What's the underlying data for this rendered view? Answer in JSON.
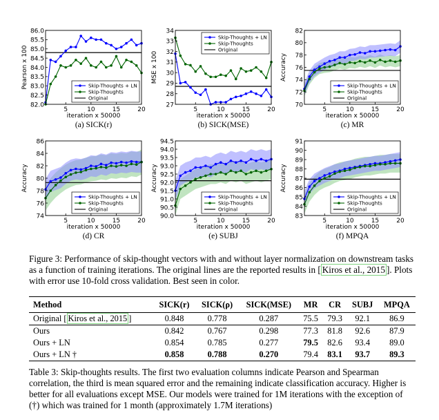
{
  "figure": {
    "series_names": [
      "Skip-Thoughts + LN",
      "Skip-Thoughts",
      "Original"
    ],
    "colors": {
      "ln": "#0000ff",
      "st": "#006400",
      "orig": "#000000",
      "ln_band": "#8c8cff",
      "st_band": "#8ccd8c"
    },
    "xlabel": "iteration x 50000",
    "caption_label": "Figure 3:",
    "caption_text": "Performance of skip-thought vectors with and without layer normalization on downstream tasks as a function of training iterations. The original lines are the reported results in",
    "caption_cite": "Kiros et al., 2015",
    "caption_end": ". Plots with error use 10-fold cross validation. Best seen in color."
  },
  "chart_data": [
    {
      "type": "line",
      "subcaption": "(a) SICK(r)",
      "ylabel": "Pearson x 100",
      "ylim": [
        82.0,
        86.0
      ],
      "yticks": [
        "82.0",
        "82.5",
        "83.0",
        "83.5",
        "84.0",
        "84.5",
        "85.0",
        "85.5",
        "86.0"
      ],
      "xlim": [
        1,
        20
      ],
      "xticks": [
        "5",
        "10",
        "15",
        "20"
      ],
      "legend_pos": "lower-right",
      "error_band": false,
      "original": 84.8,
      "x": [
        1,
        2,
        3,
        4,
        5,
        6,
        7,
        8,
        9,
        10,
        11,
        12,
        13,
        14,
        15,
        16,
        17,
        18,
        19,
        20
      ],
      "series": [
        {
          "name": "Skip-Thoughts + LN",
          "values": [
            82.1,
            84.4,
            84.3,
            84.6,
            84.9,
            85.1,
            85.1,
            85.7,
            85.4,
            85.6,
            85.5,
            85.5,
            85.3,
            85.2,
            85.0,
            85.1,
            85.3,
            85.5,
            85.2,
            85.3
          ]
        },
        {
          "name": "Skip-Thoughts",
          "values": [
            82.0,
            83.1,
            83.5,
            84.1,
            84.0,
            84.1,
            84.4,
            84.2,
            84.5,
            84.1,
            84.0,
            84.3,
            84.0,
            84.1,
            84.6,
            84.0,
            84.4,
            84.3,
            84.1,
            83.7
          ]
        }
      ]
    },
    {
      "type": "line",
      "subcaption": "(b) SICK(MSE)",
      "ylabel": "MSE x 100",
      "ylim": [
        27,
        34
      ],
      "yticks": [
        "27",
        "28",
        "29",
        "30",
        "31",
        "32",
        "33",
        "34"
      ],
      "xlim": [
        1,
        20
      ],
      "xticks": [
        "5",
        "10",
        "15",
        "20"
      ],
      "legend_pos": "top-right",
      "error_band": false,
      "original": 28.7,
      "x": [
        1,
        2,
        3,
        4,
        5,
        6,
        7,
        8,
        9,
        10,
        11,
        12,
        13,
        14,
        15,
        16,
        17,
        18,
        19,
        20
      ],
      "series": [
        {
          "name": "Skip-Thoughts + LN",
          "values": [
            31.8,
            29.0,
            29.1,
            28.6,
            28.1,
            27.9,
            28.4,
            27.0,
            27.2,
            27.2,
            27.2,
            27.5,
            27.7,
            27.8,
            28.0,
            28.2,
            28.0,
            27.8,
            28.4,
            27.7
          ]
        },
        {
          "name": "Skip-Thoughts",
          "values": [
            33.3,
            31.6,
            30.8,
            30.7,
            30.1,
            30.6,
            29.9,
            29.6,
            29.6,
            29.8,
            29.7,
            30.2,
            29.4,
            30.4,
            30.1,
            30.2,
            30.5,
            30.1,
            29.5,
            31.0
          ]
        }
      ]
    },
    {
      "type": "line",
      "subcaption": "(c) MR",
      "ylabel": "Accuracy",
      "ylim": [
        70,
        82
      ],
      "yticks": [
        "70",
        "72",
        "74",
        "76",
        "78",
        "80",
        "82"
      ],
      "xlim": [
        1,
        20
      ],
      "xticks": [
        "5",
        "10",
        "15",
        "20"
      ],
      "legend_pos": "lower-right",
      "error_band": true,
      "original": 75.5,
      "x": [
        1,
        2,
        3,
        4,
        5,
        6,
        7,
        8,
        9,
        10,
        11,
        12,
        13,
        14,
        15,
        16,
        17,
        18,
        19,
        20
      ],
      "series": [
        {
          "name": "Skip-Thoughts + LN",
          "values": [
            72.5,
            74.5,
            75.6,
            76.1,
            76.6,
            77.0,
            77.2,
            77.6,
            77.6,
            78.0,
            78.1,
            78.4,
            78.3,
            78.6,
            78.6,
            78.7,
            78.8,
            78.9,
            78.8,
            79.4
          ],
          "lower": [
            71.5,
            73.5,
            74.6,
            75.1,
            75.6,
            76.0,
            76.2,
            76.6,
            76.6,
            77.0,
            77.1,
            77.4,
            77.3,
            77.6,
            77.6,
            77.7,
            77.8,
            77.9,
            77.8,
            78.4
          ],
          "upper": [
            73.5,
            75.5,
            76.6,
            77.1,
            77.6,
            78.0,
            78.2,
            78.6,
            78.6,
            79.0,
            79.1,
            79.4,
            79.3,
            79.6,
            79.6,
            79.7,
            79.8,
            79.9,
            79.8,
            80.4
          ]
        },
        {
          "name": "Skip-Thoughts",
          "values": [
            72.2,
            74.1,
            75.2,
            75.8,
            76.0,
            76.1,
            76.4,
            76.7,
            76.5,
            76.8,
            76.7,
            77.0,
            76.8,
            77.1,
            76.8,
            77.2,
            76.9,
            77.1,
            76.9,
            77.1
          ],
          "lower": [
            71.3,
            73.2,
            74.3,
            74.9,
            75.1,
            75.2,
            75.5,
            75.8,
            75.6,
            75.9,
            75.8,
            76.1,
            75.9,
            76.2,
            75.9,
            76.3,
            76.0,
            76.2,
            76.0,
            76.2
          ],
          "upper": [
            73.1,
            75.0,
            76.1,
            76.7,
            76.9,
            77.0,
            77.3,
            77.6,
            77.4,
            77.7,
            77.6,
            77.9,
            77.7,
            78.0,
            77.7,
            78.1,
            77.8,
            78.0,
            77.8,
            78.0
          ]
        }
      ]
    },
    {
      "type": "line",
      "subcaption": "(d) CR",
      "ylabel": "Accuracy",
      "ylim": [
        74,
        86
      ],
      "yticks": [
        "74",
        "76",
        "78",
        "80",
        "82",
        "84",
        "86"
      ],
      "xlim": [
        1,
        20
      ],
      "xticks": [
        "5",
        "10",
        "15",
        "20"
      ],
      "legend_pos": "lower-right",
      "error_band": true,
      "original": 79.3,
      "x": [
        1,
        2,
        3,
        4,
        5,
        6,
        7,
        8,
        9,
        10,
        11,
        12,
        13,
        14,
        15,
        16,
        17,
        18,
        19,
        20
      ],
      "series": [
        {
          "name": "Skip-Thoughts + LN",
          "values": [
            78.2,
            79.5,
            79.8,
            80.1,
            80.8,
            81.3,
            81.5,
            81.4,
            81.6,
            82.0,
            81.9,
            82.3,
            82.1,
            82.5,
            82.4,
            82.6,
            82.5,
            82.7,
            82.6,
            82.6
          ],
          "lower": [
            76.5,
            77.8,
            78.1,
            78.4,
            79.1,
            79.6,
            79.8,
            79.7,
            79.9,
            80.3,
            80.2,
            80.6,
            80.4,
            80.8,
            80.7,
            80.9,
            80.8,
            81.0,
            80.9,
            80.9
          ],
          "upper": [
            79.9,
            81.2,
            81.5,
            81.8,
            82.5,
            83.0,
            83.2,
            83.1,
            83.3,
            83.7,
            83.6,
            84.0,
            83.8,
            84.2,
            84.1,
            84.3,
            84.2,
            84.4,
            84.3,
            84.3
          ]
        },
        {
          "name": "Skip-Thoughts",
          "values": [
            76.8,
            78.0,
            78.9,
            79.6,
            80.2,
            80.6,
            80.9,
            81.0,
            81.3,
            81.5,
            81.6,
            81.8,
            81.7,
            82.0,
            81.9,
            82.1,
            82.0,
            82.3,
            82.2,
            82.6
          ],
          "lower": [
            74.8,
            76.0,
            76.9,
            77.6,
            78.2,
            78.6,
            78.9,
            79.0,
            79.3,
            79.5,
            79.6,
            79.8,
            79.7,
            80.0,
            79.9,
            80.1,
            80.0,
            80.3,
            80.2,
            80.6
          ],
          "upper": [
            78.8,
            80.0,
            80.9,
            81.6,
            82.2,
            82.6,
            82.9,
            83.0,
            83.3,
            83.5,
            83.6,
            83.8,
            83.7,
            84.0,
            83.9,
            84.1,
            84.0,
            84.3,
            84.2,
            84.6
          ]
        }
      ]
    },
    {
      "type": "line",
      "subcaption": "(e) SUBJ",
      "ylabel": "Accuracy",
      "ylim": [
        90.0,
        94.5
      ],
      "yticks": [
        "90.0",
        "90.5",
        "91.0",
        "91.5",
        "92.0",
        "92.5",
        "93.0",
        "93.5",
        "94.0",
        "94.5"
      ],
      "xlim": [
        1,
        20
      ],
      "xticks": [
        "5",
        "10",
        "15",
        "20"
      ],
      "legend_pos": "lower-right",
      "error_band": true,
      "original": 92.1,
      "x": [
        1,
        2,
        3,
        4,
        5,
        6,
        7,
        8,
        9,
        10,
        11,
        12,
        13,
        14,
        15,
        16,
        17,
        18,
        19,
        20
      ],
      "series": [
        {
          "name": "Skip-Thoughts + LN",
          "values": [
            91.5,
            92.4,
            92.6,
            92.7,
            92.9,
            92.9,
            93.0,
            92.9,
            93.1,
            93.2,
            93.1,
            93.3,
            93.2,
            93.3,
            93.2,
            93.4,
            93.3,
            93.4,
            93.3,
            93.4
          ],
          "lower": [
            90.9,
            91.8,
            92.0,
            92.1,
            92.3,
            92.3,
            92.4,
            92.3,
            92.5,
            92.6,
            92.5,
            92.7,
            92.6,
            92.7,
            92.6,
            92.8,
            92.7,
            92.8,
            92.7,
            92.8
          ],
          "upper": [
            92.1,
            93.0,
            93.2,
            93.3,
            93.5,
            93.5,
            93.6,
            93.5,
            93.7,
            93.8,
            93.7,
            93.9,
            93.8,
            93.9,
            93.8,
            94.0,
            93.9,
            94.0,
            93.9,
            94.0
          ]
        },
        {
          "name": "Skip-Thoughts",
          "values": [
            90.6,
            91.6,
            91.8,
            92.0,
            92.2,
            92.3,
            92.4,
            92.5,
            92.5,
            92.6,
            92.5,
            92.7,
            92.6,
            92.7,
            92.5,
            92.6,
            92.7,
            92.6,
            92.7,
            92.8
          ],
          "lower": [
            90.0,
            91.0,
            91.2,
            91.4,
            91.6,
            91.7,
            91.8,
            91.9,
            91.9,
            92.0,
            91.9,
            92.1,
            92.0,
            92.1,
            91.9,
            92.0,
            92.1,
            92.0,
            92.1,
            92.2
          ],
          "upper": [
            91.2,
            92.2,
            92.4,
            92.6,
            92.8,
            92.9,
            93.0,
            93.1,
            93.1,
            93.2,
            93.1,
            93.3,
            93.2,
            93.3,
            93.1,
            93.2,
            93.3,
            93.2,
            93.3,
            93.4
          ]
        }
      ]
    },
    {
      "type": "line",
      "subcaption": "(f) MPQA",
      "ylabel": "Accuracy",
      "ylim": [
        83,
        91
      ],
      "yticks": [
        "83",
        "84",
        "85",
        "86",
        "87",
        "88",
        "89",
        "90",
        "91"
      ],
      "xlim": [
        1,
        20
      ],
      "xticks": [
        "5",
        "10",
        "15",
        "20"
      ],
      "legend_pos": "lower-right",
      "error_band": true,
      "original": 86.9,
      "x": [
        1,
        2,
        3,
        4,
        5,
        6,
        7,
        8,
        9,
        10,
        11,
        12,
        13,
        14,
        15,
        16,
        17,
        18,
        19,
        20
      ],
      "series": [
        {
          "name": "Skip-Thoughts + LN",
          "values": [
            84.8,
            86.1,
            86.7,
            87.0,
            87.3,
            87.5,
            87.7,
            87.8,
            88.0,
            88.1,
            88.2,
            88.3,
            88.4,
            88.5,
            88.6,
            88.6,
            88.7,
            88.8,
            88.9,
            89.0
          ],
          "lower": [
            84.0,
            85.3,
            85.9,
            86.2,
            86.5,
            86.7,
            86.9,
            87.0,
            87.2,
            87.3,
            87.4,
            87.5,
            87.6,
            87.7,
            87.8,
            87.8,
            87.9,
            88.0,
            88.1,
            88.2
          ],
          "upper": [
            85.6,
            86.9,
            87.5,
            87.8,
            88.1,
            88.3,
            88.5,
            88.6,
            88.8,
            88.9,
            89.0,
            89.1,
            89.2,
            89.3,
            89.4,
            89.4,
            89.5,
            89.6,
            89.7,
            89.8
          ]
        },
        {
          "name": "Skip-Thoughts",
          "values": [
            84.2,
            85.5,
            86.2,
            86.7,
            87.0,
            87.2,
            87.5,
            87.7,
            87.8,
            87.9,
            88.1,
            88.2,
            88.3,
            88.3,
            88.4,
            88.5,
            88.5,
            88.6,
            88.6,
            88.6
          ],
          "lower": [
            83.2,
            84.5,
            85.2,
            85.7,
            86.0,
            86.2,
            86.5,
            86.7,
            86.8,
            86.9,
            87.1,
            87.2,
            87.3,
            87.3,
            87.4,
            87.5,
            87.5,
            87.6,
            87.6,
            87.6
          ],
          "upper": [
            85.2,
            86.5,
            87.2,
            87.7,
            88.0,
            88.2,
            88.5,
            88.7,
            88.8,
            88.9,
            89.1,
            89.2,
            89.3,
            89.3,
            89.4,
            89.5,
            89.5,
            89.6,
            89.6,
            89.6
          ]
        }
      ]
    }
  ],
  "table": {
    "headers": [
      "Method",
      "SICK(r)",
      "SICK(ρ)",
      "SICK(MSE)",
      "MR",
      "CR",
      "SUBJ",
      "MPQA"
    ],
    "original_label": "Original",
    "original_cite": "Kiros et al., 2015",
    "original_values": [
      "0.848",
      "0.778",
      "0.287",
      "75.5",
      "79.3",
      "92.1",
      "86.9"
    ],
    "rows": [
      {
        "method": "Ours",
        "values": [
          "0.842",
          "0.767",
          "0.298",
          "77.3",
          "81.8",
          "92.6",
          "87.9"
        ]
      },
      {
        "method": "Ours + LN",
        "values": [
          "0.854",
          "0.785",
          "0.277",
          "79.5",
          "82.6",
          "93.4",
          "89.0"
        ]
      },
      {
        "method": "Ours + LN †",
        "values": [
          "0.858",
          "0.788",
          "0.270",
          "79.4",
          "83.1",
          "93.7",
          "89.3"
        ]
      }
    ],
    "caption_label": "Table 3:",
    "caption_text": "Skip-thoughts results. The first two evaluation columns indicate Pearson and Spearman correlation, the third is mean squared error and the remaining indicate classification accuracy. Higher is better for all evaluations except MSE. Our models were trained for 1M iterations with the exception of (†) which was trained for 1 month (approximately 1.7M iterations)"
  }
}
